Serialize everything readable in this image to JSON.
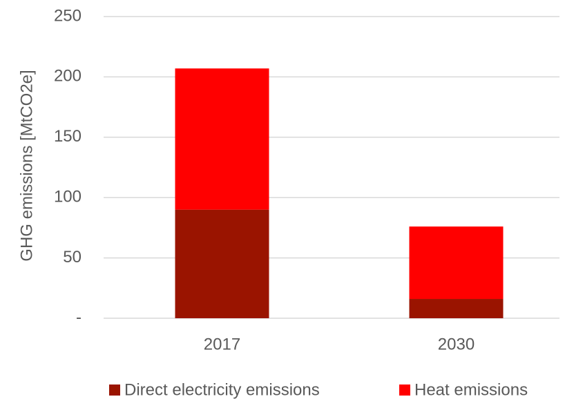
{
  "chart_data": {
    "type": "stacked_bar",
    "y_label": "GHG emissions [MtCO2e]",
    "categories": [
      "2017",
      "2030"
    ],
    "series": [
      {
        "name": "Direct electricity emissions",
        "color": "#9a1400",
        "values": [
          90,
          16
        ]
      },
      {
        "name": "Heat emissions",
        "color": "#ff0000",
        "values": [
          117,
          60
        ]
      }
    ],
    "ylim": [
      0,
      250
    ],
    "yticks": [
      {
        "value": 0,
        "label": "-"
      },
      50,
      100,
      150,
      200,
      250
    ],
    "grid": true,
    "legend": "bottom"
  }
}
